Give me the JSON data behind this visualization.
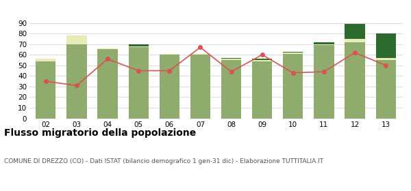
{
  "years": [
    "02",
    "03",
    "04",
    "05",
    "06",
    "07",
    "08",
    "09",
    "10",
    "11",
    "12",
    "13"
  ],
  "iscritti_altri_comuni": [
    54,
    70,
    65,
    67,
    60,
    60,
    55,
    54,
    61,
    69,
    72,
    55
  ],
  "iscritti_estero": [
    2,
    8,
    1,
    1,
    1,
    1,
    1,
    1,
    1,
    1,
    3,
    2
  ],
  "iscritti_altri": [
    0,
    0,
    0,
    2,
    0,
    0,
    1,
    1,
    1,
    2,
    14,
    23
  ],
  "cancellati": [
    35,
    31,
    56,
    45,
    45,
    67,
    44,
    60,
    43,
    44,
    62,
    50
  ],
  "color_altri_comuni": "#8fac6e",
  "color_estero": "#e8ebb5",
  "color_altri": "#2d6a2d",
  "color_cancellati": "#d9534f",
  "ylim": [
    0,
    90
  ],
  "yticks": [
    0,
    10,
    20,
    30,
    40,
    50,
    60,
    70,
    80,
    90
  ],
  "title": "Flusso migratorio della popolazione",
  "subtitle": "COMUNE DI DREZZO (CO) - Dati ISTAT (bilancio demografico 1 gen-31 dic) - Elaborazione TUTTITALIA.IT",
  "grid_color": "#cccccc",
  "title_fontsize": 10,
  "subtitle_fontsize": 6.5,
  "axis_fontsize": 7.5,
  "legend_fontsize": 7.5
}
